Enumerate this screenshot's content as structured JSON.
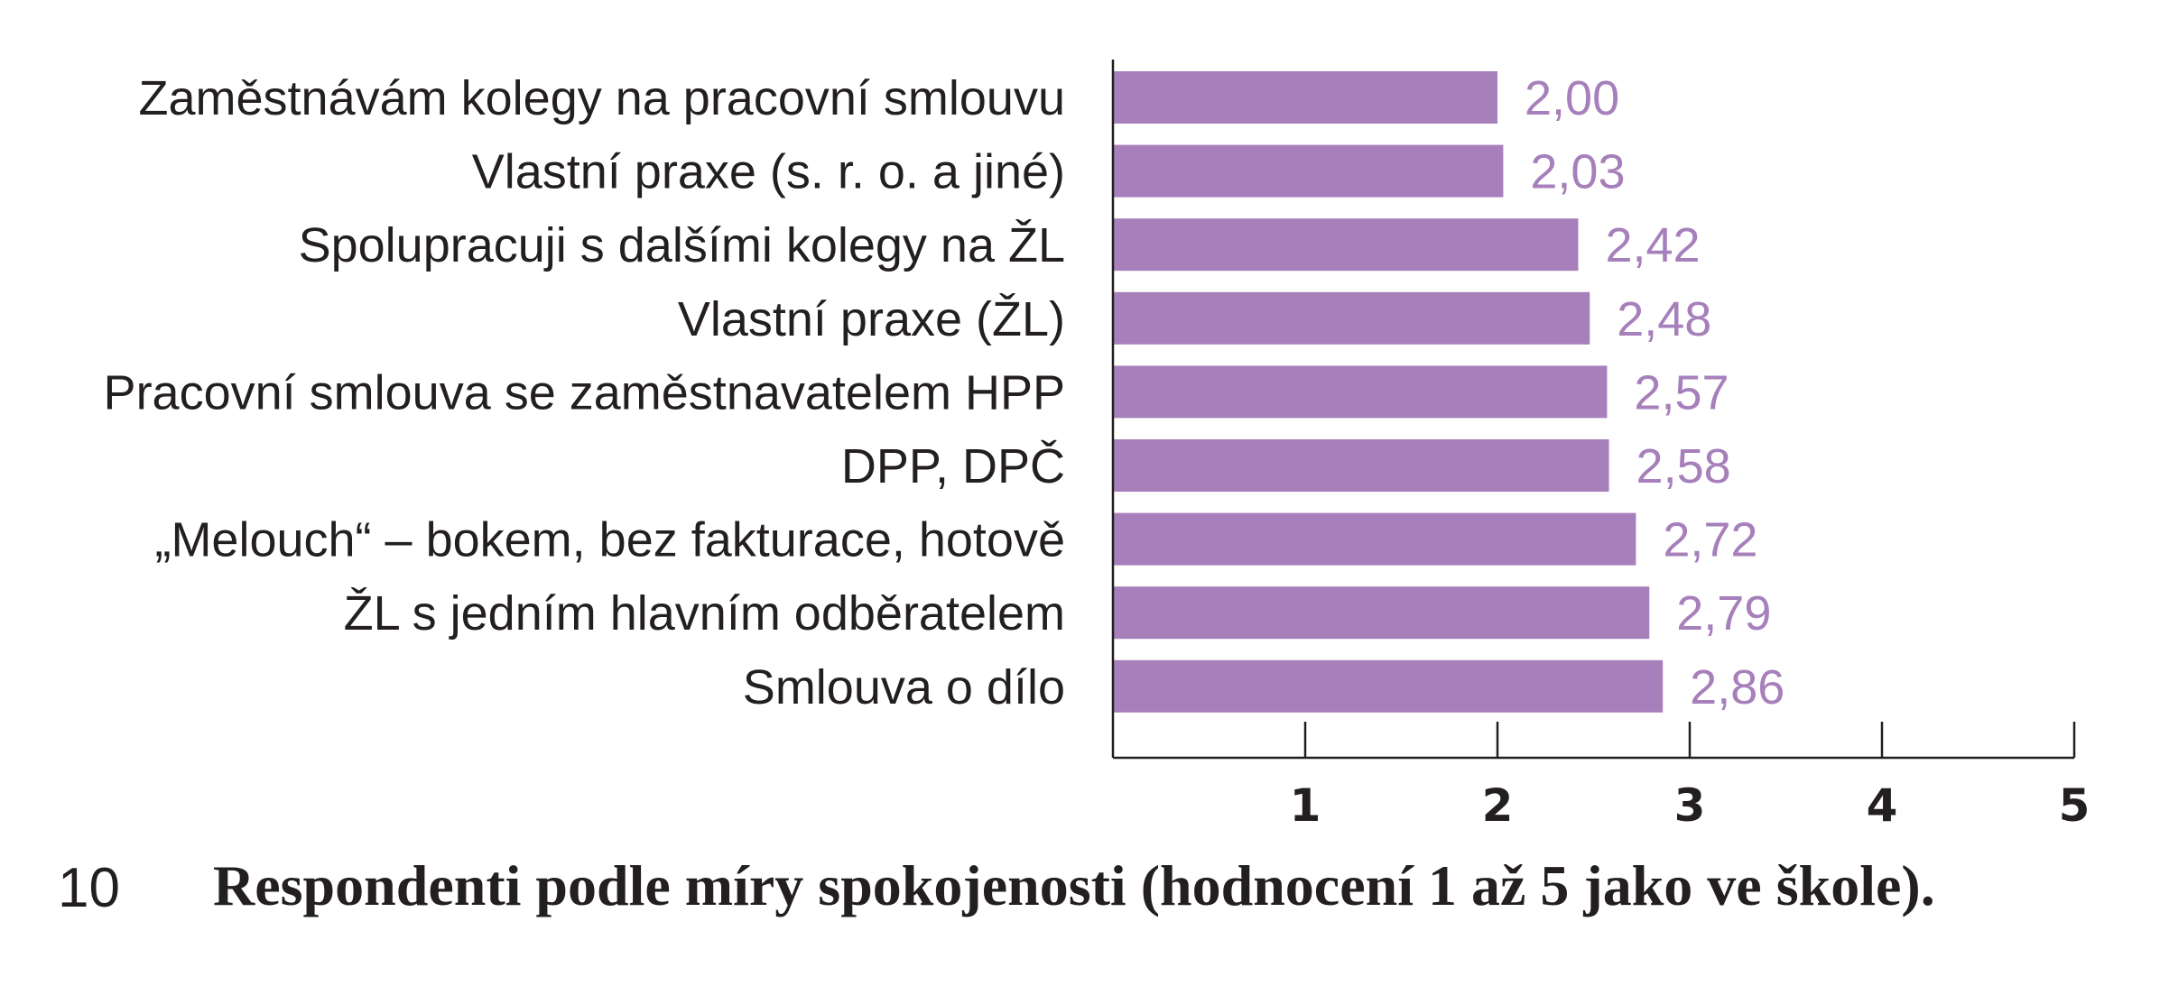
{
  "chart_data": {
    "type": "bar",
    "orientation": "horizontal",
    "categories": [
      "Zaměstnávám kolegy na pracovní smlouvu",
      "Vlastní praxe (s. r. o. a jiné)",
      "Spolupracuji s dalšími kolegy na ŽL",
      "Vlastní praxe (ŽL)",
      "Pracovní smlouva se zaměstnavatelem HPP",
      "DPP, DPČ",
      "„Melouch“ – bokem, bez fakturace, hotově",
      "ŽL s jedním hlavním odběratelem",
      "Smlouva o dílo"
    ],
    "values": [
      2.0,
      2.03,
      2.42,
      2.48,
      2.57,
      2.58,
      2.72,
      2.79,
      2.86
    ],
    "value_labels": [
      "2,00",
      "2,03",
      "2,42",
      "2,48",
      "2,57",
      "2,58",
      "2,72",
      "2,79",
      "2,86"
    ],
    "xlim": [
      0,
      5
    ],
    "xticks": [
      "1",
      "2",
      "3",
      "4",
      "5"
    ],
    "grid": false,
    "bar_color": "#a67fbb",
    "value_label_color": "#a67fbb"
  },
  "caption": {
    "number": "10",
    "text": "Respondenti podle míry spokojenosti (hodnocení 1 až 5 jako ve škole)."
  }
}
